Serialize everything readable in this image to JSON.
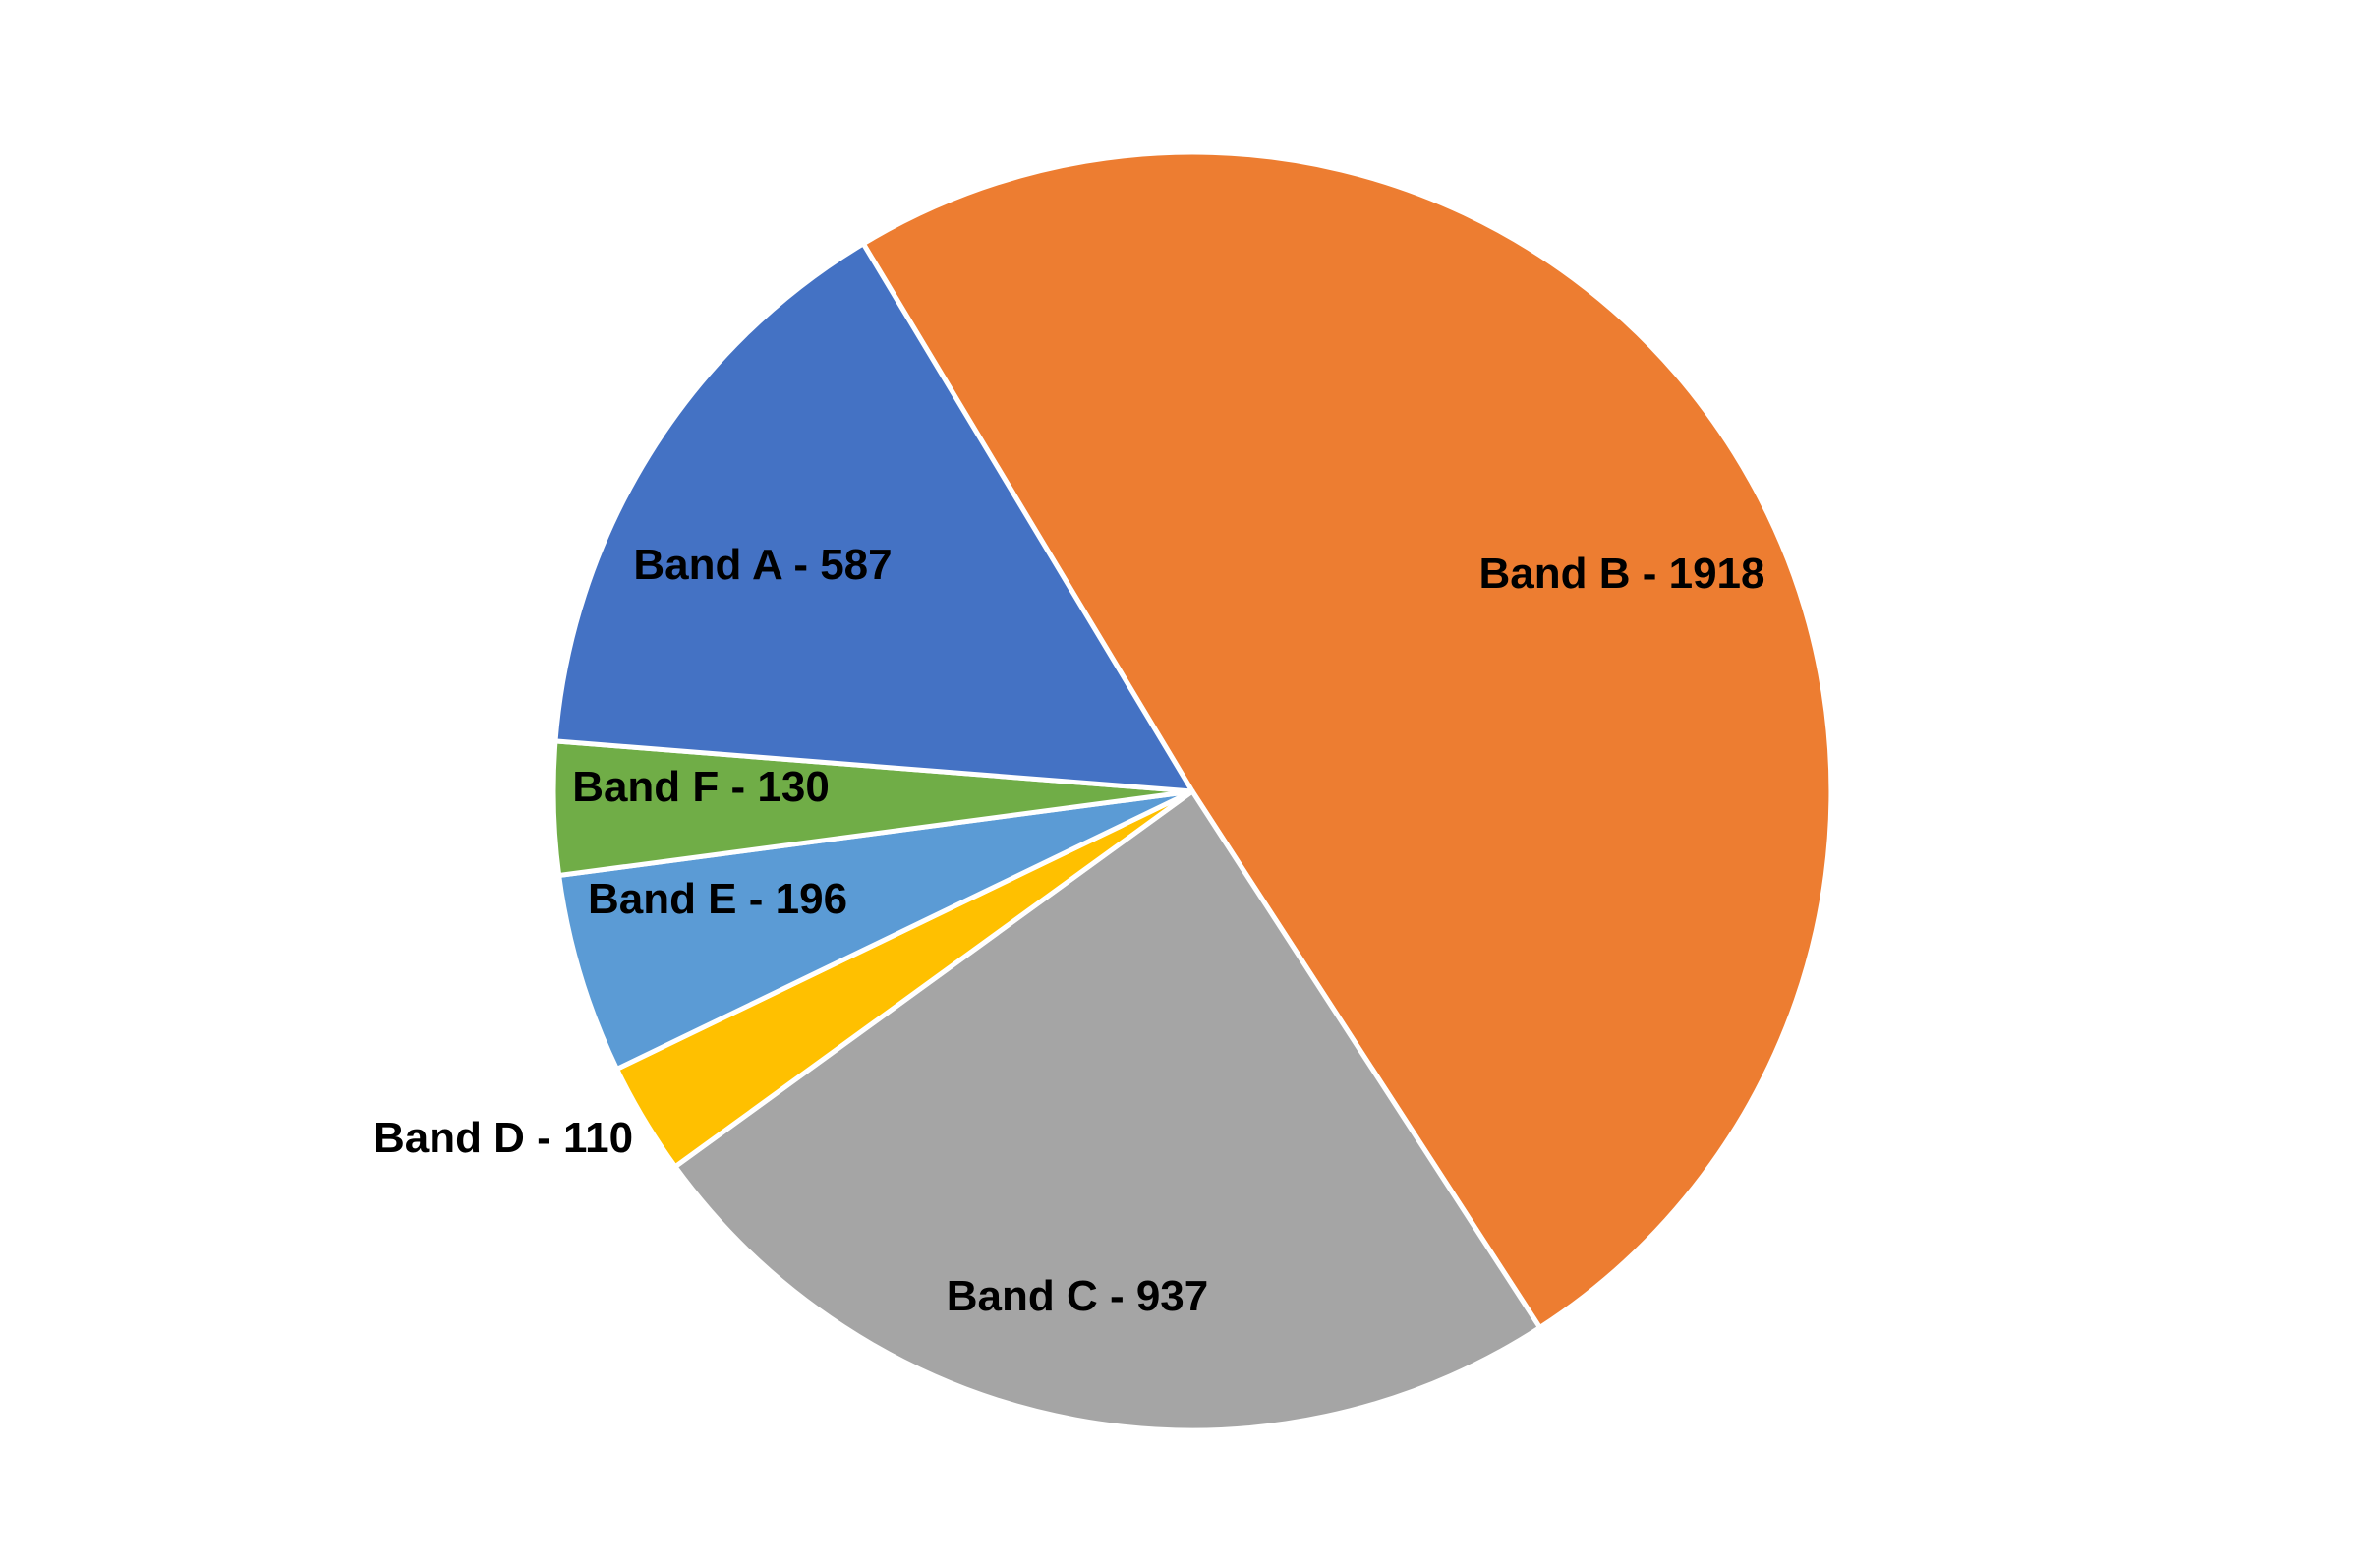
{
  "chart_data": {
    "type": "pie",
    "title": "",
    "start_angle_deg": -31,
    "direction": "clockwise",
    "slice_order": [
      "Band B",
      "Band C",
      "Band D",
      "Band E",
      "Band F",
      "Band A"
    ],
    "slices": [
      {
        "name": "Band B",
        "value": 1918,
        "label": "Band B - 1918",
        "color": "#ED7D31"
      },
      {
        "name": "Band C",
        "value": 937,
        "label": "Band C - 937",
        "color": "#A5A5A5"
      },
      {
        "name": "Band D",
        "value": 110,
        "label": "Band D - 110",
        "color": "#FFC000"
      },
      {
        "name": "Band E",
        "value": 196,
        "label": "Band E - 196",
        "color": "#5B9BD5"
      },
      {
        "name": "Band F",
        "value": 130,
        "label": "Band F - 130",
        "color": "#70AD47"
      },
      {
        "name": "Band A",
        "value": 587,
        "label": "Band A - 587",
        "color": "#4472C4"
      }
    ],
    "border_color": "#FFFFFF",
    "legend": "none"
  }
}
